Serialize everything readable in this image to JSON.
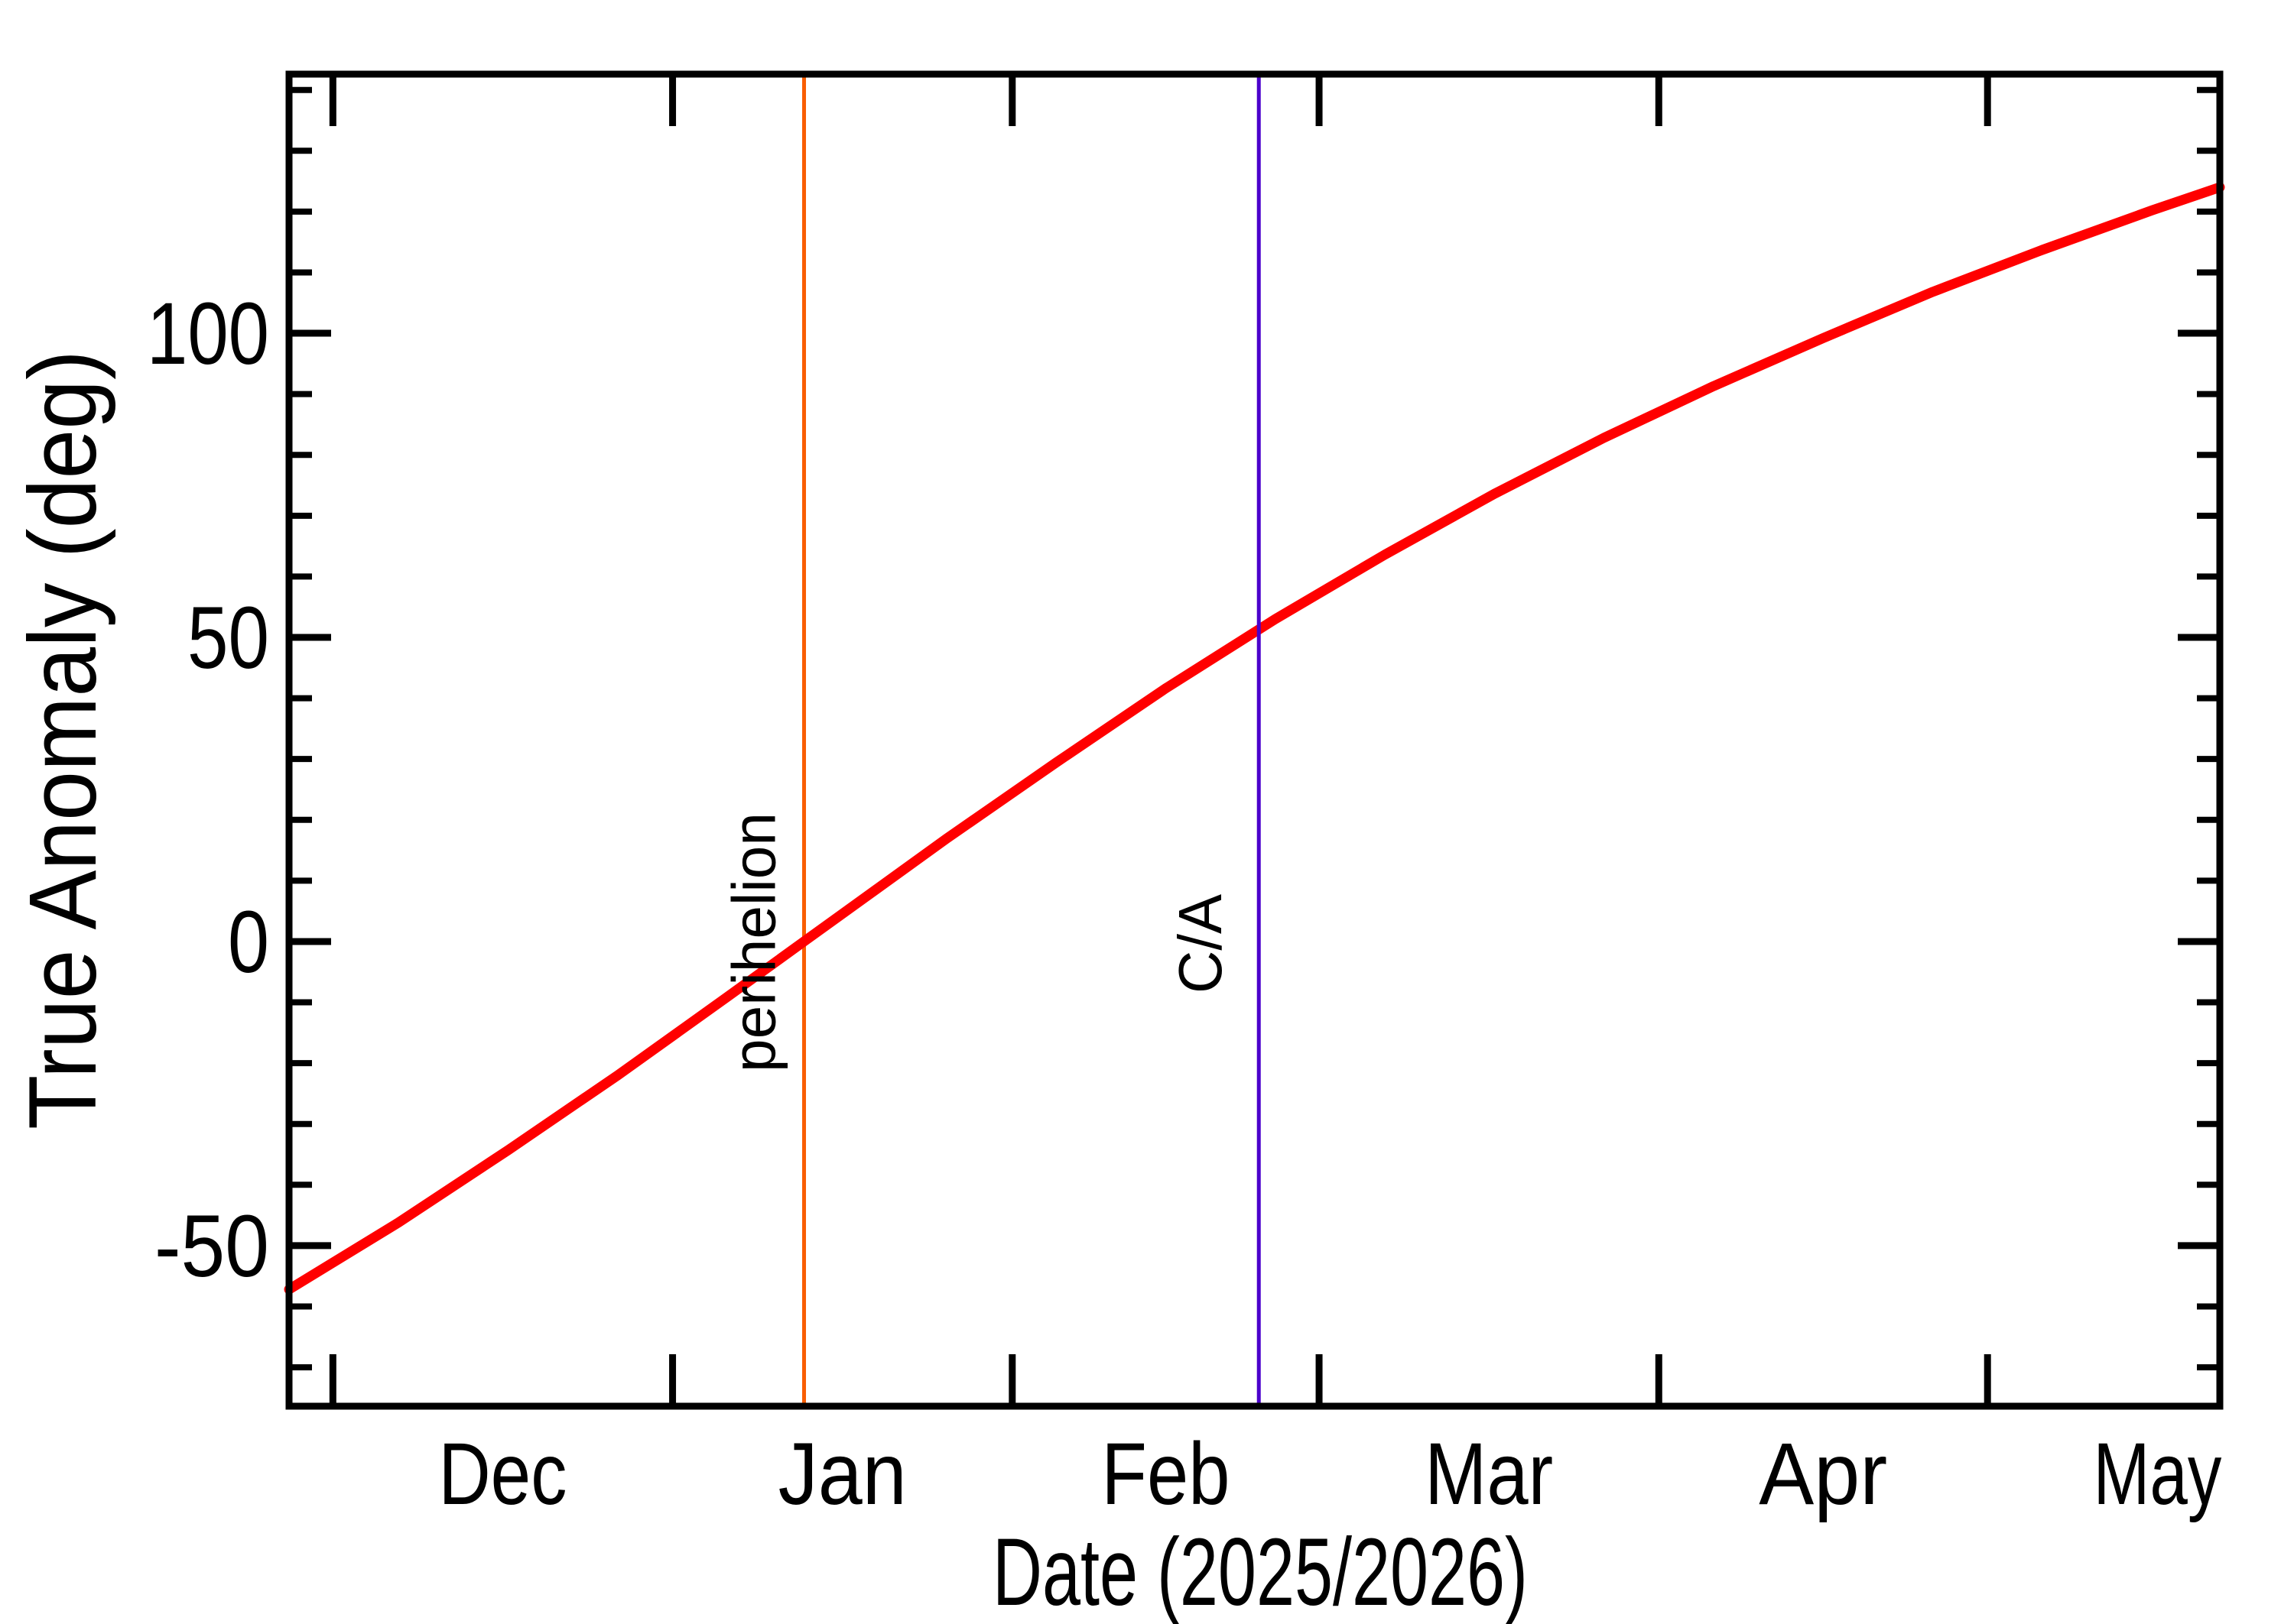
{
  "figure": {
    "background": "#ffffff",
    "axis_color": "#000000"
  },
  "chart_data": {
    "type": "line",
    "title": "",
    "xlabel": "Date (2025/2026)",
    "ylabel": "True Anomaly (deg)",
    "grid": false,
    "legend": "none",
    "x_axis": {
      "title": "Date (2025/2026)",
      "unit": "days",
      "range": [
        0,
        176.2
      ],
      "month_tick_days": [
        4,
        35,
        66,
        94,
        125,
        155
      ],
      "month_labels": [
        {
          "label": "Dec",
          "day": 19.5
        },
        {
          "label": "Jan",
          "day": 50.5
        },
        {
          "label": "Feb",
          "day": 80
        },
        {
          "label": "Mar",
          "day": 109.5
        },
        {
          "label": "Apr",
          "day": 140
        },
        {
          "label": "May",
          "day": 170.5
        }
      ]
    },
    "y_axis": {
      "title": "True Anomaly (deg)",
      "range": [
        -76.4,
        142.6
      ],
      "major_ticks": [
        {
          "value": 100,
          "label": "100"
        },
        {
          "value": 50,
          "label": "50"
        },
        {
          "value": 0,
          "label": "0"
        },
        {
          "value": -50,
          "label": "-50"
        }
      ],
      "minor_tick_step": 10,
      "minor_tick_range": [
        -70,
        140
      ]
    },
    "series": [
      {
        "name": "true_anomaly",
        "color": "#ff0000",
        "line_width": 13,
        "points_day_deg": [
          [
            0,
            -57.2
          ],
          [
            10,
            -46.2
          ],
          [
            20,
            -34.3
          ],
          [
            30,
            -22.0
          ],
          [
            40,
            -9.1
          ],
          [
            47,
            0.0
          ],
          [
            50,
            3.9
          ],
          [
            60,
            16.9
          ],
          [
            70,
            29.4
          ],
          [
            80,
            41.6
          ],
          [
            90,
            53.0
          ],
          [
            100,
            63.6
          ],
          [
            110,
            73.6
          ],
          [
            120,
            82.8
          ],
          [
            130,
            91.3
          ],
          [
            140,
            99.2
          ],
          [
            150,
            106.8
          ],
          [
            160,
            113.7
          ],
          [
            170,
            120.2
          ],
          [
            176.2,
            124.0
          ]
        ]
      }
    ],
    "markers": [
      {
        "id": "perihelion",
        "label": "perihelion",
        "day": 47,
        "color": "#f95d00"
      },
      {
        "id": "close_approach",
        "label": "C/A",
        "day": 88.5,
        "color": "#4b00cc"
      }
    ]
  }
}
